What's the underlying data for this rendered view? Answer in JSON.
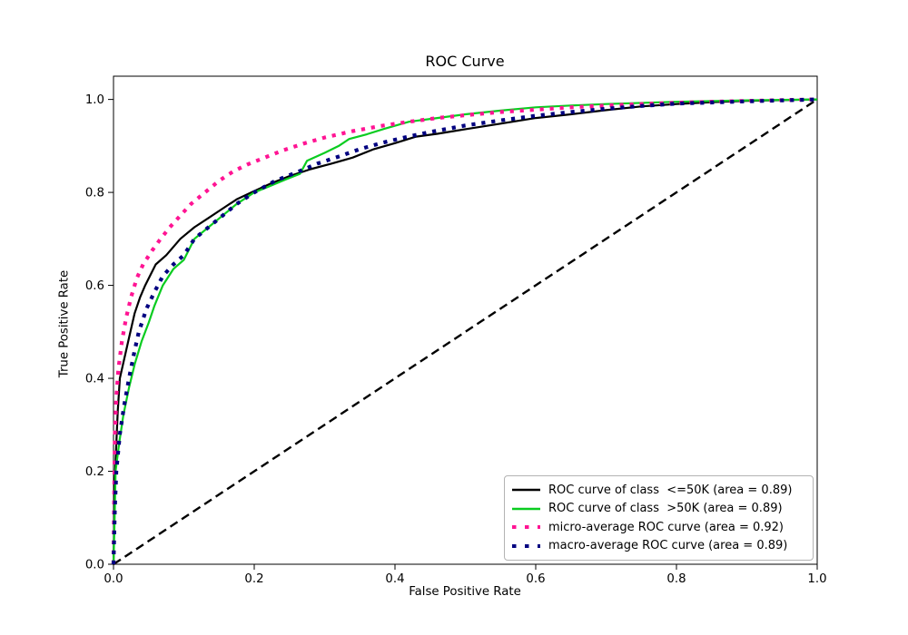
{
  "figure": {
    "background": "#ffffff"
  },
  "chart_data": {
    "type": "line",
    "title": "ROC Curve",
    "xlabel": "False Positive Rate",
    "ylabel": "True Positive Rate",
    "xlim": [
      0.0,
      1.0
    ],
    "ylim": [
      0.0,
      1.05
    ],
    "xticks": [
      0.0,
      0.2,
      0.4,
      0.6,
      0.8,
      1.0
    ],
    "xtick_labels": [
      "0.0",
      "0.2",
      "0.4",
      "0.6",
      "0.8",
      "1.0"
    ],
    "yticks": [
      0.0,
      0.2,
      0.4,
      0.6,
      0.8,
      1.0
    ],
    "ytick_labels": [
      "0.0",
      "0.2",
      "0.4",
      "0.6",
      "0.8",
      "1.0"
    ],
    "grid": false,
    "legend": {
      "position": "lower right",
      "border_color": "#b3b3b3",
      "background": "#ffffff"
    },
    "series": [
      {
        "key": "class-le50k",
        "label": "ROC curve of class  <=50K (area = 0.89)",
        "area": 0.89,
        "color": "#000000",
        "style": "solid",
        "width": 2.2,
        "points": [
          [
            0,
            0
          ],
          [
            0.001,
            0.1
          ],
          [
            0.002,
            0.18
          ],
          [
            0.004,
            0.26
          ],
          [
            0.006,
            0.33
          ],
          [
            0.009,
            0.4
          ],
          [
            0.015,
            0.44
          ],
          [
            0.024,
            0.5
          ],
          [
            0.03,
            0.54
          ],
          [
            0.038,
            0.575
          ],
          [
            0.045,
            0.6
          ],
          [
            0.06,
            0.645
          ],
          [
            0.075,
            0.665
          ],
          [
            0.095,
            0.7
          ],
          [
            0.115,
            0.725
          ],
          [
            0.135,
            0.745
          ],
          [
            0.155,
            0.765
          ],
          [
            0.175,
            0.785
          ],
          [
            0.2,
            0.803
          ],
          [
            0.225,
            0.82
          ],
          [
            0.25,
            0.835
          ],
          [
            0.28,
            0.85
          ],
          [
            0.31,
            0.862
          ],
          [
            0.34,
            0.875
          ],
          [
            0.37,
            0.893
          ],
          [
            0.4,
            0.906
          ],
          [
            0.43,
            0.92
          ],
          [
            0.46,
            0.926
          ],
          [
            0.5,
            0.936
          ],
          [
            0.55,
            0.948
          ],
          [
            0.6,
            0.96
          ],
          [
            0.65,
            0.968
          ],
          [
            0.7,
            0.977
          ],
          [
            0.75,
            0.985
          ],
          [
            0.8,
            0.99
          ],
          [
            0.85,
            0.994
          ],
          [
            0.9,
            0.997
          ],
          [
            1,
            1
          ]
        ]
      },
      {
        "key": "class-gt50k",
        "label": "ROC curve of class  >50K (area = 0.89)",
        "area": 0.89,
        "color": "#0ACC20",
        "style": "solid",
        "width": 2.2,
        "points": [
          [
            0,
            0
          ],
          [
            0.002,
            0.12
          ],
          [
            0.003,
            0.2
          ],
          [
            0.008,
            0.26
          ],
          [
            0.014,
            0.32
          ],
          [
            0.022,
            0.38
          ],
          [
            0.03,
            0.43
          ],
          [
            0.04,
            0.48
          ],
          [
            0.05,
            0.52
          ],
          [
            0.058,
            0.555
          ],
          [
            0.07,
            0.6
          ],
          [
            0.085,
            0.635
          ],
          [
            0.1,
            0.655
          ],
          [
            0.115,
            0.7
          ],
          [
            0.135,
            0.725
          ],
          [
            0.155,
            0.75
          ],
          [
            0.175,
            0.775
          ],
          [
            0.2,
            0.8
          ],
          [
            0.22,
            0.812
          ],
          [
            0.245,
            0.828
          ],
          [
            0.265,
            0.84
          ],
          [
            0.275,
            0.868
          ],
          [
            0.3,
            0.885
          ],
          [
            0.32,
            0.9
          ],
          [
            0.335,
            0.915
          ],
          [
            0.36,
            0.925
          ],
          [
            0.385,
            0.937
          ],
          [
            0.42,
            0.952
          ],
          [
            0.46,
            0.96
          ],
          [
            0.5,
            0.968
          ],
          [
            0.55,
            0.976
          ],
          [
            0.6,
            0.983
          ],
          [
            0.65,
            0.987
          ],
          [
            0.7,
            0.99
          ],
          [
            0.8,
            0.995
          ],
          [
            0.9,
            0.998
          ],
          [
            1,
            1
          ]
        ]
      },
      {
        "key": "micro-average",
        "label": "micro-average ROC curve (area = 0.92)",
        "area": 0.92,
        "color": "#FF1493",
        "style": "dotted",
        "width": 4.2,
        "points": [
          [
            0,
            0
          ],
          [
            0.001,
            0.15
          ],
          [
            0.002,
            0.28
          ],
          [
            0.004,
            0.36
          ],
          [
            0.007,
            0.42
          ],
          [
            0.012,
            0.48
          ],
          [
            0.018,
            0.53
          ],
          [
            0.025,
            0.575
          ],
          [
            0.033,
            0.615
          ],
          [
            0.042,
            0.645
          ],
          [
            0.055,
            0.675
          ],
          [
            0.067,
            0.7
          ],
          [
            0.08,
            0.725
          ],
          [
            0.095,
            0.75
          ],
          [
            0.11,
            0.775
          ],
          [
            0.13,
            0.8
          ],
          [
            0.15,
            0.825
          ],
          [
            0.17,
            0.845
          ],
          [
            0.19,
            0.86
          ],
          [
            0.21,
            0.872
          ],
          [
            0.24,
            0.89
          ],
          [
            0.27,
            0.905
          ],
          [
            0.3,
            0.918
          ],
          [
            0.34,
            0.932
          ],
          [
            0.38,
            0.943
          ],
          [
            0.42,
            0.952
          ],
          [
            0.46,
            0.96
          ],
          [
            0.5,
            0.966
          ],
          [
            0.55,
            0.973
          ],
          [
            0.6,
            0.978
          ],
          [
            0.65,
            0.983
          ],
          [
            0.7,
            0.987
          ],
          [
            0.75,
            0.99
          ],
          [
            0.8,
            0.993
          ],
          [
            0.9,
            0.997
          ],
          [
            1,
            1
          ]
        ]
      },
      {
        "key": "macro-average",
        "label": "macro-average ROC curve (area = 0.89)",
        "area": 0.89,
        "color": "#000080",
        "style": "dotted",
        "width": 4.2,
        "points": [
          [
            0,
            0
          ],
          [
            0.002,
            0.12
          ],
          [
            0.004,
            0.2
          ],
          [
            0.009,
            0.28
          ],
          [
            0.015,
            0.34
          ],
          [
            0.022,
            0.4
          ],
          [
            0.03,
            0.46
          ],
          [
            0.036,
            0.5
          ],
          [
            0.047,
            0.55
          ],
          [
            0.058,
            0.585
          ],
          [
            0.07,
            0.62
          ],
          [
            0.085,
            0.645
          ],
          [
            0.1,
            0.665
          ],
          [
            0.115,
            0.7
          ],
          [
            0.135,
            0.725
          ],
          [
            0.155,
            0.75
          ],
          [
            0.175,
            0.775
          ],
          [
            0.2,
            0.8
          ],
          [
            0.23,
            0.825
          ],
          [
            0.26,
            0.843
          ],
          [
            0.29,
            0.862
          ],
          [
            0.32,
            0.877
          ],
          [
            0.35,
            0.893
          ],
          [
            0.38,
            0.906
          ],
          [
            0.41,
            0.917
          ],
          [
            0.45,
            0.93
          ],
          [
            0.5,
            0.944
          ],
          [
            0.55,
            0.955
          ],
          [
            0.6,
            0.965
          ],
          [
            0.65,
            0.973
          ],
          [
            0.7,
            0.98
          ],
          [
            0.75,
            0.986
          ],
          [
            0.8,
            0.991
          ],
          [
            0.9,
            0.996
          ],
          [
            1,
            1
          ]
        ]
      }
    ],
    "reference_line": {
      "key": "chance-diagonal",
      "color": "#000000",
      "style": "dashed",
      "width": 2.4,
      "points": [
        [
          0,
          0
        ],
        [
          1,
          1
        ]
      ]
    }
  }
}
